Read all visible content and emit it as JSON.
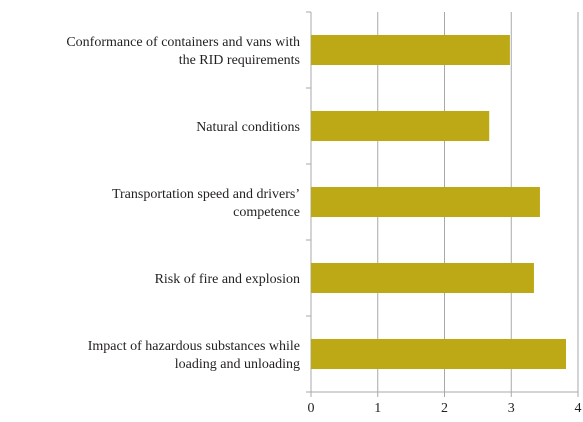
{
  "chart_data": {
    "type": "bar",
    "orientation": "horizontal",
    "categories": [
      "Conformance of containers and vans with\nthe RID requirements",
      "Natural conditions",
      "Transportation speed and drivers’\ncompetence",
      "Risk of fire and explosion",
      "Impact of hazardous substances while\nloading and unloading"
    ],
    "values": [
      2.98,
      2.67,
      3.43,
      3.34,
      3.82
    ],
    "color": "#bda915",
    "xlim": [
      0,
      4
    ],
    "xticks": [
      0,
      1,
      2,
      3,
      4
    ],
    "grid": true
  }
}
